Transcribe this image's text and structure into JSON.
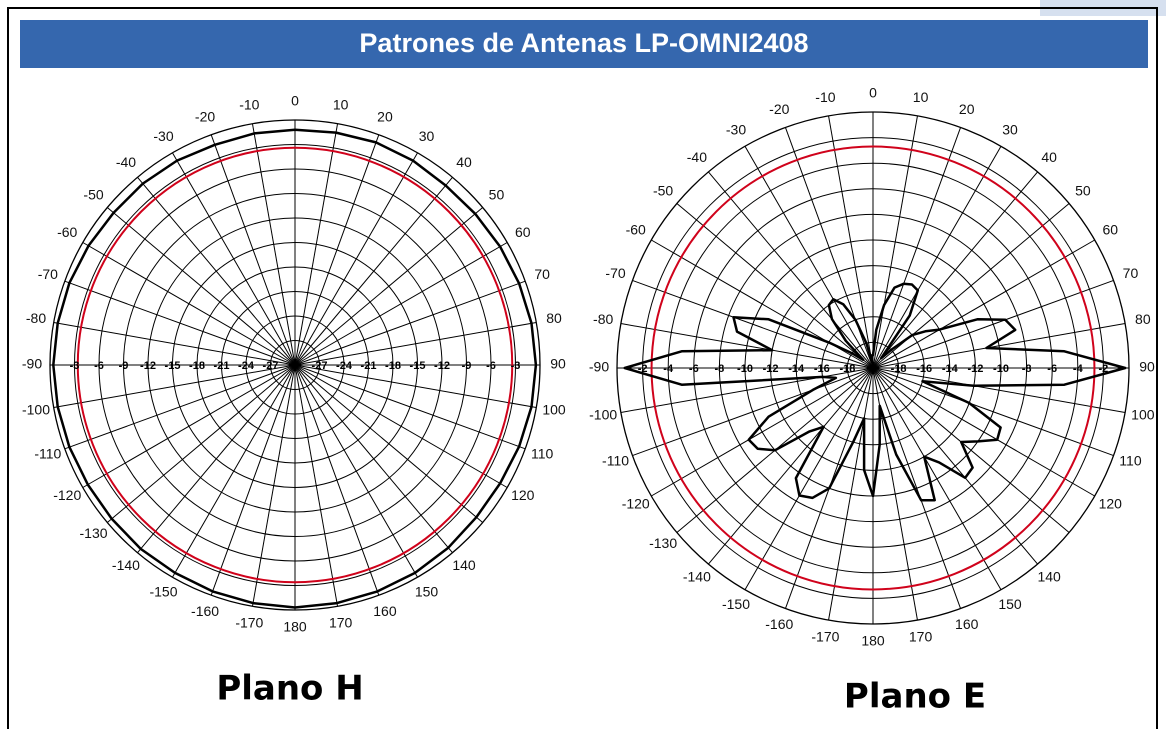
{
  "title": "Patrones de Antenas LP-OMNI2408",
  "chart_data": [
    {
      "type": "polar",
      "title": "Plano H",
      "theta_ticks": [
        0,
        10,
        20,
        30,
        40,
        50,
        60,
        70,
        80,
        90,
        100,
        110,
        120,
        140,
        150,
        160,
        170,
        180,
        -170,
        -160,
        -150,
        -140,
        -130,
        -120,
        -110,
        -100,
        -90,
        -80,
        -70,
        -60,
        -50,
        -40,
        -30,
        -20,
        -10
      ],
      "rlim": [
        -30,
        0
      ],
      "rticks": [
        -27,
        -24,
        -21,
        -18,
        -15,
        -12,
        -9,
        -6,
        -3
      ],
      "reference": {
        "value": -3.4,
        "color": "#d0021b"
      },
      "series": [
        {
          "color": "#000000",
          "theta": [
            -180,
            -170,
            -160,
            -150,
            -140,
            -130,
            -120,
            -110,
            -100,
            -90,
            -80,
            -70,
            -60,
            -50,
            -40,
            -30,
            -20,
            -10,
            0,
            10,
            20,
            30,
            40,
            50,
            60,
            70,
            80,
            90,
            100,
            110,
            120,
            130,
            140,
            150,
            160,
            170
          ],
          "r": [
            -0.3,
            -0.4,
            -0.5,
            -0.6,
            -0.6,
            -0.7,
            -0.7,
            -0.6,
            -0.5,
            -0.4,
            -0.5,
            -0.6,
            -0.8,
            -1.0,
            -1.0,
            -1.1,
            -1.3,
            -1.2,
            -1.2,
            -1.1,
            -1.0,
            -1.1,
            -1.3,
            -1.2,
            -1.0,
            -0.8,
            -0.6,
            -0.5,
            -0.6,
            -0.8,
            -1.0,
            -1.0,
            -0.8,
            -0.6,
            -0.5,
            -0.4
          ]
        }
      ]
    },
    {
      "type": "polar",
      "title": "Plano E",
      "theta_ticks": [
        0,
        10,
        20,
        30,
        40,
        50,
        60,
        70,
        80,
        90,
        100,
        110,
        120,
        140,
        150,
        160,
        170,
        180,
        -170,
        -160,
        -150,
        -140,
        -130,
        -120,
        -110,
        -100,
        -90,
        -80,
        -70,
        -60,
        -50,
        -40,
        -30,
        -20,
        -10
      ],
      "rlim": [
        -20,
        0
      ],
      "rticks": [
        -18,
        -16,
        -14,
        -12,
        -10,
        -8,
        -6,
        -4,
        -2
      ],
      "reference": {
        "value": -2.7,
        "color": "#d0021b"
      },
      "series": [
        {
          "color": "#000000",
          "theta": [
            -180,
            -175,
            -170,
            -165,
            -160,
            -155,
            -150,
            -145,
            -140,
            -135,
            -130,
            -125,
            -120,
            -115,
            -110,
            -105,
            -100,
            -95,
            -90,
            -85,
            -80,
            -75,
            -70,
            -65,
            -60,
            -55,
            -50,
            -45,
            -40,
            -35,
            -30,
            -25,
            -20,
            -15,
            -10,
            -5,
            0,
            5,
            10,
            15,
            20,
            25,
            30,
            35,
            40,
            45,
            50,
            55,
            60,
            65,
            70,
            75,
            80,
            85,
            90,
            95,
            100,
            105,
            110,
            115,
            120,
            125,
            130,
            135,
            140,
            145,
            150,
            155,
            160,
            165,
            170,
            175
          ],
          "r": [
            -10,
            -12,
            -16,
            -14,
            -10,
            -8.8,
            -8.5,
            -9.5,
            -14,
            -13,
            -10,
            -9,
            -8.8,
            -11,
            -15,
            -17,
            -16,
            -5,
            -0.6,
            -5,
            -12,
            -9,
            -8.4,
            -11,
            -16,
            -18,
            -19,
            -17,
            -15,
            -14,
            -13.8,
            -14.5,
            -16,
            -18,
            -19.5,
            -19,
            -19,
            -17,
            -15,
            -13.5,
            -13,
            -12.8,
            -13,
            -15,
            -19,
            -18,
            -16,
            -15,
            -14,
            -11,
            -9,
            -8.5,
            -11,
            -5,
            -0.3,
            -5,
            -12,
            -16,
            -12,
            -9,
            -8.8,
            -10,
            -11,
            -9,
            -8.8,
            -11,
            -12,
            -8.6,
            -9,
            -13,
            -17,
            -14
          ]
        }
      ]
    }
  ]
}
